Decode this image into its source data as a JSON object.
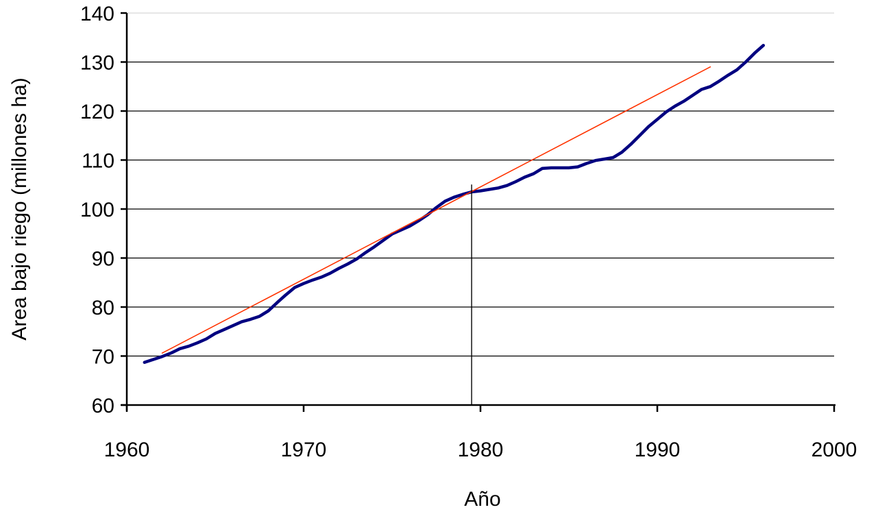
{
  "chart_data": {
    "type": "line",
    "title": "",
    "xlabel": "Año",
    "ylabel": "Area bajo riego (millones ha)",
    "xlim": [
      1960,
      2000
    ],
    "ylim": [
      60,
      140
    ],
    "x_ticks": [
      1960,
      1970,
      1980,
      1990,
      2000
    ],
    "y_ticks": [
      60,
      70,
      80,
      90,
      100,
      110,
      120,
      130,
      140
    ],
    "grid": "horizontal",
    "legend": "none",
    "series": [
      {
        "color": "#000080",
        "x": [
          1961,
          1961.5,
          1962,
          1962.5,
          1963,
          1963.5,
          1964,
          1964.5,
          1965,
          1965.5,
          1966,
          1966.5,
          1967,
          1967.5,
          1968,
          1968.5,
          1969,
          1969.5,
          1970,
          1970.5,
          1971,
          1971.5,
          1972,
          1972.5,
          1973,
          1973.5,
          1974,
          1974.5,
          1975,
          1975.5,
          1976,
          1976.5,
          1977,
          1977.5,
          1978,
          1978.5,
          1979,
          1979.5,
          1980,
          1980.5,
          1981,
          1981.5,
          1982,
          1982.5,
          1983,
          1983.5,
          1984,
          1984.5,
          1985,
          1985.5,
          1986,
          1986.5,
          1987,
          1987.5,
          1988,
          1988.5,
          1989,
          1989.5,
          1990,
          1990.5,
          1991,
          1991.5,
          1992,
          1992.5,
          1993,
          1993.5,
          1994,
          1994.5,
          1995,
          1995.5,
          1996
        ],
        "y": [
          68.7,
          69.3,
          69.9,
          70.6,
          71.5,
          72.0,
          72.7,
          73.5,
          74.6,
          75.4,
          76.2,
          77.0,
          77.5,
          78.1,
          79.2,
          80.9,
          82.5,
          84.0,
          84.8,
          85.5,
          86.1,
          86.9,
          87.9,
          88.8,
          89.8,
          91.1,
          92.3,
          93.6,
          94.9,
          95.7,
          96.5,
          97.6,
          98.8,
          100.3,
          101.6,
          102.4,
          103.0,
          103.5,
          103.7,
          104.0,
          104.3,
          104.8,
          105.6,
          106.5,
          107.2,
          108.3,
          108.4,
          108.4,
          108.4,
          108.6,
          109.3,
          109.9,
          110.2,
          110.5,
          111.6,
          113.2,
          115.0,
          116.8,
          118.3,
          119.8,
          121.0,
          122.0,
          123.2,
          124.4,
          125.0,
          126.1,
          127.3,
          128.4,
          130.0,
          131.8,
          133.4
        ]
      },
      {
        "color": "#ff3300",
        "x": [
          1962,
          1993
        ],
        "y": [
          70.6,
          129.0
        ]
      }
    ],
    "annotations": [
      {
        "type": "vertical-line",
        "x": 1979.5,
        "y": [
          60,
          105
        ]
      }
    ]
  }
}
